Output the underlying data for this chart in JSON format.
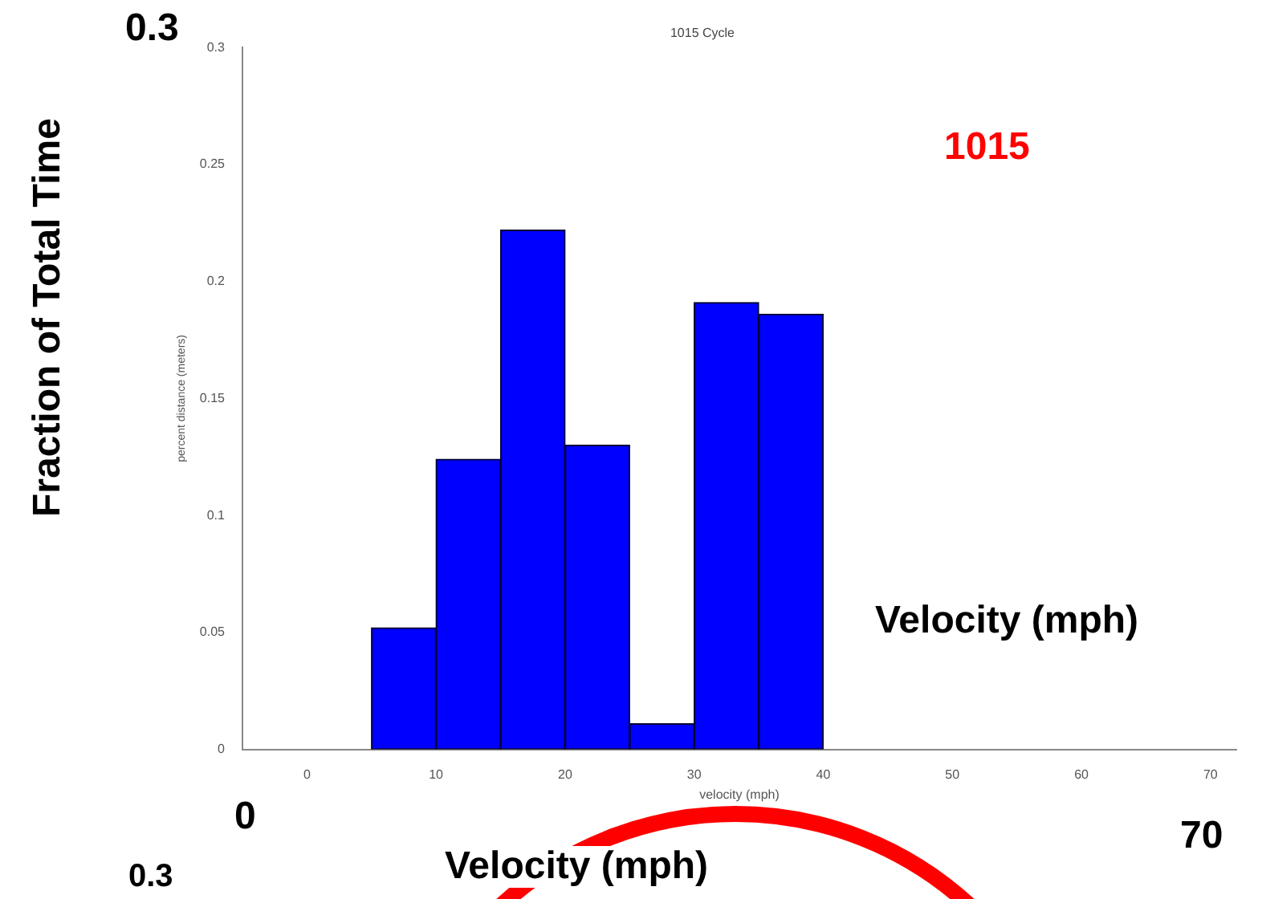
{
  "chart_data": {
    "type": "histogram",
    "title": "1015 Cycle",
    "xlabel": "velocity (mph)",
    "ylabel": "percent distance (meters)",
    "bins": [
      5,
      10,
      15,
      20,
      25,
      30,
      35,
      40
    ],
    "values": [
      0.052,
      0.124,
      0.222,
      0.13,
      0.011,
      0.191,
      0.186
    ],
    "color": "#0000ff",
    "xlim": [
      -5,
      72
    ],
    "xticks": [
      0,
      10,
      20,
      30,
      40,
      50,
      60,
      70
    ],
    "ylim": [
      0,
      0.3
    ],
    "yticks": [
      0,
      0.05,
      0.1,
      0.15,
      0.2,
      0.25,
      0.3
    ],
    "grid": false,
    "legend": false,
    "annotations": [
      "0.3",
      "Fraction of Total Time",
      "1015",
      "Velocity (mph)",
      "0",
      "70",
      "Velocity (mph)",
      "0.3"
    ]
  }
}
